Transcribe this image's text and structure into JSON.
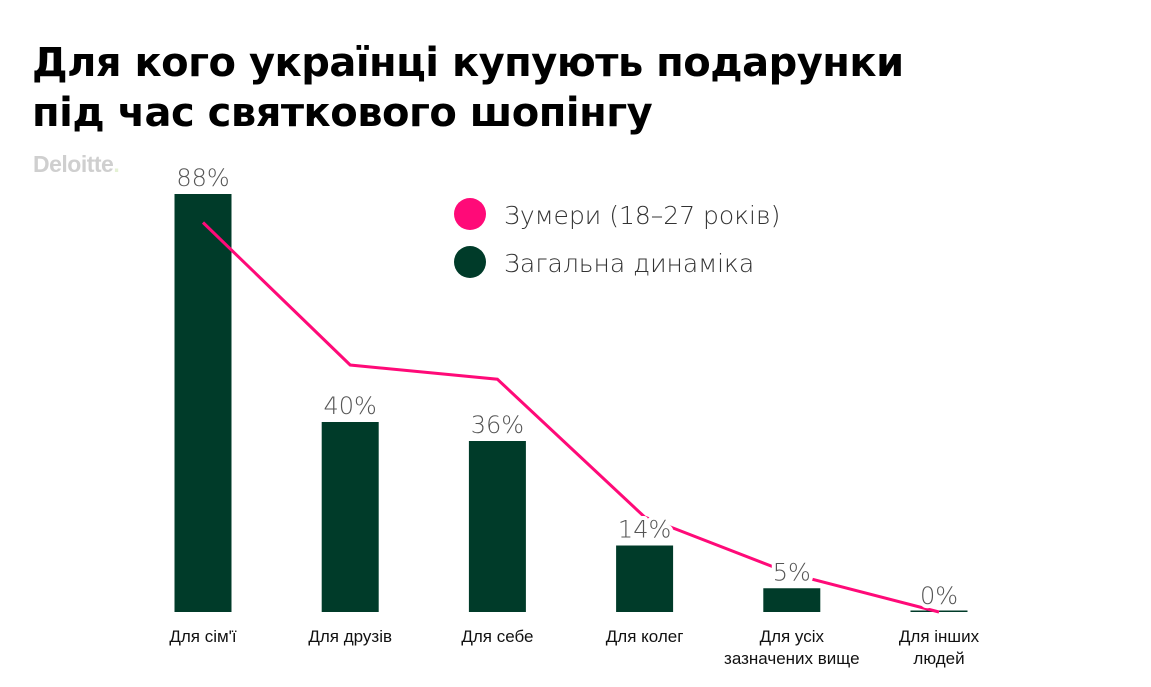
{
  "title_lines": [
    "Для кого українці купують подарунки",
    "під час святкового шопінгу"
  ],
  "source_logo": "Deloitte",
  "chart_data": {
    "type": "bar",
    "categories": [
      [
        "Для сім'ї"
      ],
      [
        "Для друзів"
      ],
      [
        "Для себе"
      ],
      [
        "Для колег"
      ],
      [
        "Для усіх",
        "зазначених вище"
      ],
      [
        "Для інших",
        "людей"
      ]
    ],
    "series": [
      {
        "name": "Загальна динаміка",
        "type": "bar",
        "color": "#003b29",
        "values": [
          88,
          40,
          36,
          14,
          5,
          0
        ],
        "labels": [
          "88%",
          "40%",
          "36%",
          "14%",
          "5%",
          "0%"
        ]
      },
      {
        "name": "Зумери (18–27 років)",
        "type": "line",
        "color": "#ff0a78",
        "values": [
          82,
          52,
          49,
          20,
          8,
          0
        ]
      }
    ],
    "ylim": [
      0,
      88
    ],
    "legend": "top-center",
    "grid": false
  }
}
